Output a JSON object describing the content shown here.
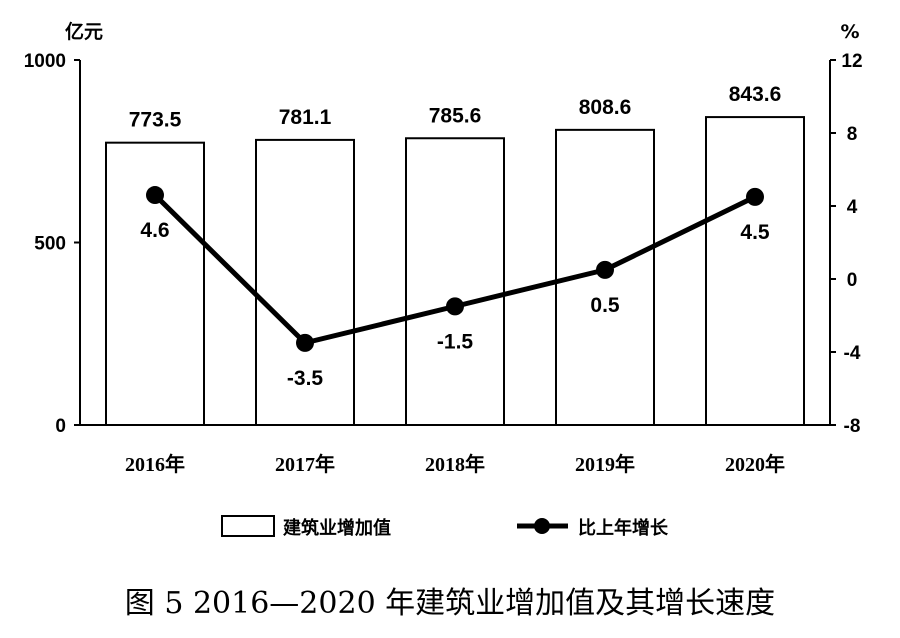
{
  "chart_data": {
    "type": "bar+line",
    "categories": [
      "2016年",
      "2017年",
      "2018年",
      "2019年",
      "2020年"
    ],
    "series": [
      {
        "name": "建筑业增加值",
        "type": "bar",
        "axis": "left",
        "values": [
          773.5,
          781.1,
          785.6,
          808.6,
          843.6
        ]
      },
      {
        "name": "比上年增长",
        "type": "line",
        "axis": "right",
        "values": [
          4.6,
          -3.5,
          -1.5,
          0.5,
          4.5
        ]
      }
    ],
    "bar_labels": [
      "773.5",
      "781.1",
      "785.6",
      "808.6",
      "843.6"
    ],
    "line_labels": [
      "4.6",
      "-3.5",
      "-1.5",
      "0.5",
      "4.5"
    ],
    "y_left": {
      "unit": "亿元",
      "range": [
        0,
        1000
      ],
      "ticks": [
        0,
        500,
        1000
      ],
      "tick_labels": [
        "0",
        "500",
        "1000"
      ]
    },
    "y_right": {
      "unit": "%",
      "range": [
        -8,
        12
      ],
      "ticks": [
        -8,
        -4,
        0,
        4,
        8,
        12
      ],
      "tick_labels": [
        "-8",
        "-4",
        "0",
        "4",
        "8",
        "12"
      ]
    },
    "grid": false,
    "legend_position": "bottom",
    "caption": "图 5 2016—2020 年建筑业增加值及其增长速度"
  }
}
